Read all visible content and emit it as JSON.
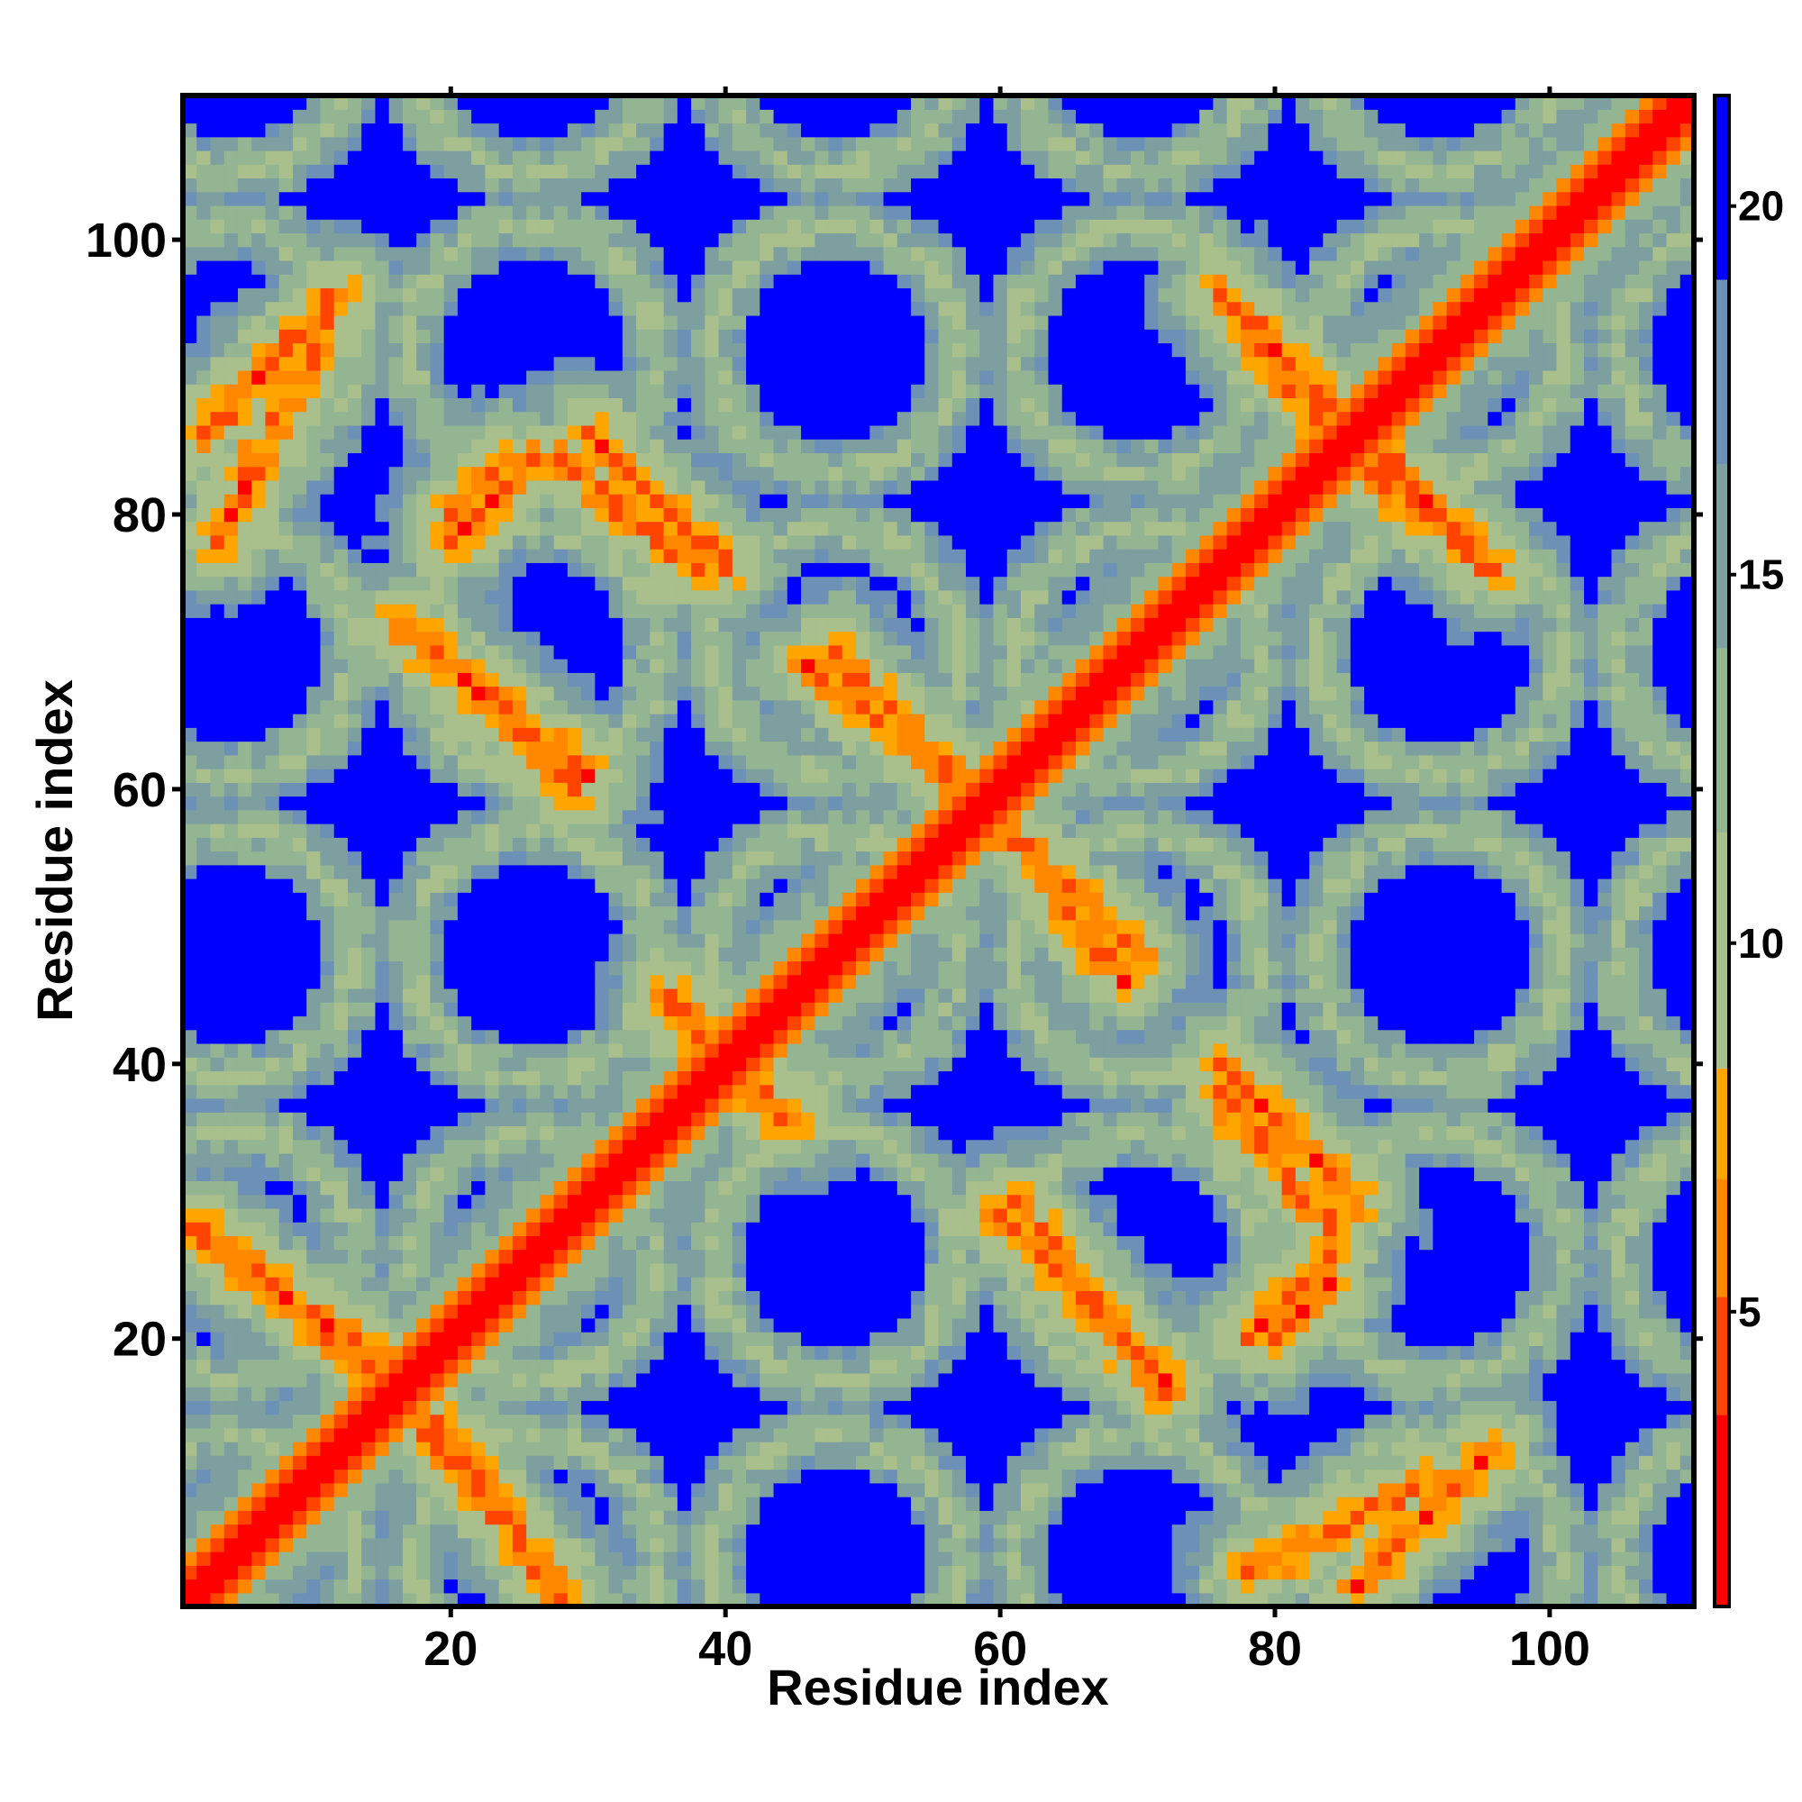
{
  "chart_data": {
    "type": "heatmap",
    "title": "",
    "xlabel": "Residue index",
    "ylabel": "Residue index",
    "n_residues": 110,
    "xlim": [
      1,
      110
    ],
    "ylim": [
      1,
      110
    ],
    "x_ticks": [
      20,
      40,
      60,
      80,
      100
    ],
    "y_ticks": [
      20,
      40,
      60,
      80,
      100
    ],
    "colorbar": {
      "ticks": [
        5,
        10,
        15,
        20
      ],
      "range": [
        1,
        21.5
      ],
      "scale": [
        {
          "max": 3.6,
          "color": "#ff0000"
        },
        {
          "max": 5.2,
          "color": "#ff4400"
        },
        {
          "max": 6.8,
          "color": "#ff8800"
        },
        {
          "max": 8.3,
          "color": "#ffa500"
        },
        {
          "max": 11.5,
          "color": "#a9bf8c"
        },
        {
          "max": 14.0,
          "color": "#93b592"
        },
        {
          "max": 16.5,
          "color": "#7d9fa0"
        },
        {
          "max": 19.0,
          "color": "#6c90b6"
        },
        {
          "max": 99,
          "color": "#0000ff"
        }
      ]
    },
    "contact_bands": [
      {
        "kind": "anti",
        "x0": 1,
        "y0": 28,
        "x1": 14,
        "y1": 19
      },
      {
        "kind": "anti",
        "x0": 18,
        "y0": 14,
        "x1": 28,
        "y1": 2
      },
      {
        "kind": "anti",
        "x0": 16,
        "y0": 72,
        "x1": 30,
        "y1": 61
      },
      {
        "kind": "anti",
        "x0": 28,
        "y0": 84,
        "x1": 38,
        "y1": 76
      },
      {
        "kind": "anti",
        "x0": 36,
        "y0": 45,
        "x1": 44,
        "y1": 36
      },
      {
        "kind": "anti",
        "x0": 46,
        "y0": 69,
        "x1": 58,
        "y1": 60
      },
      {
        "kind": "anti",
        "x0": 59,
        "y0": 58,
        "x1": 70,
        "y1": 48
      },
      {
        "kind": "anti",
        "x0": 60,
        "y0": 29,
        "x1": 72,
        "y1": 17
      },
      {
        "kind": "anti",
        "x0": 76,
        "y0": 40,
        "x1": 86,
        "y1": 30
      },
      {
        "kind": "anti",
        "x0": 76,
        "y0": 96,
        "x1": 86,
        "y1": 86
      },
      {
        "kind": "anti",
        "x0": 86,
        "y0": 84,
        "x1": 96,
        "y1": 76
      },
      {
        "kind": "par",
        "x0": 2,
        "y0": 86,
        "x1": 12,
        "y1": 96
      },
      {
        "kind": "par",
        "x0": 20,
        "y0": 78,
        "x1": 26,
        "y1": 84
      },
      {
        "kind": "par",
        "x0": 80,
        "y0": 20,
        "x1": 84,
        "y1": 24
      },
      {
        "kind": "par",
        "x0": 78,
        "y0": 3,
        "x1": 92,
        "y1": 10
      }
    ]
  }
}
